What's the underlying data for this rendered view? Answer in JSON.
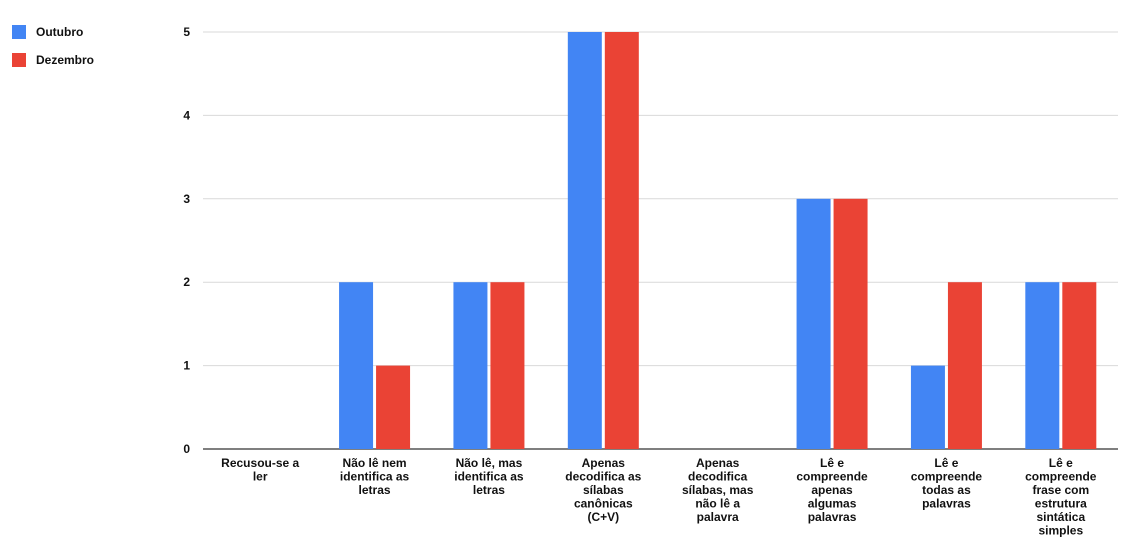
{
  "chart_data": {
    "type": "bar",
    "title": "",
    "xlabel": "",
    "ylabel": "",
    "ylim": [
      0,
      5
    ],
    "yticks": [
      0,
      1,
      2,
      3,
      4,
      5
    ],
    "grid": true,
    "legend_position": "top-left",
    "categories": [
      "Recusou-se a ler",
      "Não lê nem identifica as letras",
      "Não lê, mas identifica as letras",
      "Apenas decodifica as sílabas canônicas (C+V)",
      "Apenas decodifica sílabas, mas não lê a palavra",
      "Lê e compreende apenas algumas palavras",
      "Lê e compreende todas as palavras",
      "Lê e compreende frase com estrutura sintática simples"
    ],
    "category_lines": [
      [
        "Recusou-se a",
        "ler"
      ],
      [
        "Não lê nem",
        "identifica as",
        "letras"
      ],
      [
        "Não lê, mas",
        "identifica as",
        "letras"
      ],
      [
        "Apenas",
        "decodifica as",
        "sílabas",
        "canônicas",
        "(C+V)"
      ],
      [
        "Apenas",
        "decodifica",
        "sílabas, mas",
        "não lê a",
        "palavra"
      ],
      [
        "Lê e",
        "compreende",
        "apenas",
        "algumas",
        "palavras"
      ],
      [
        "Lê e",
        "compreende",
        "todas as",
        "palavras"
      ],
      [
        "Lê e",
        "compreende",
        "frase com",
        "estrutura",
        "sintática",
        "simples"
      ]
    ],
    "series": [
      {
        "name": "Outubro",
        "color": "#4285f4",
        "values": [
          0,
          2,
          2,
          5,
          0,
          3,
          1,
          2
        ]
      },
      {
        "name": "Dezembro",
        "color": "#ea4335",
        "values": [
          0,
          1,
          2,
          5,
          0,
          3,
          2,
          2
        ]
      }
    ]
  }
}
